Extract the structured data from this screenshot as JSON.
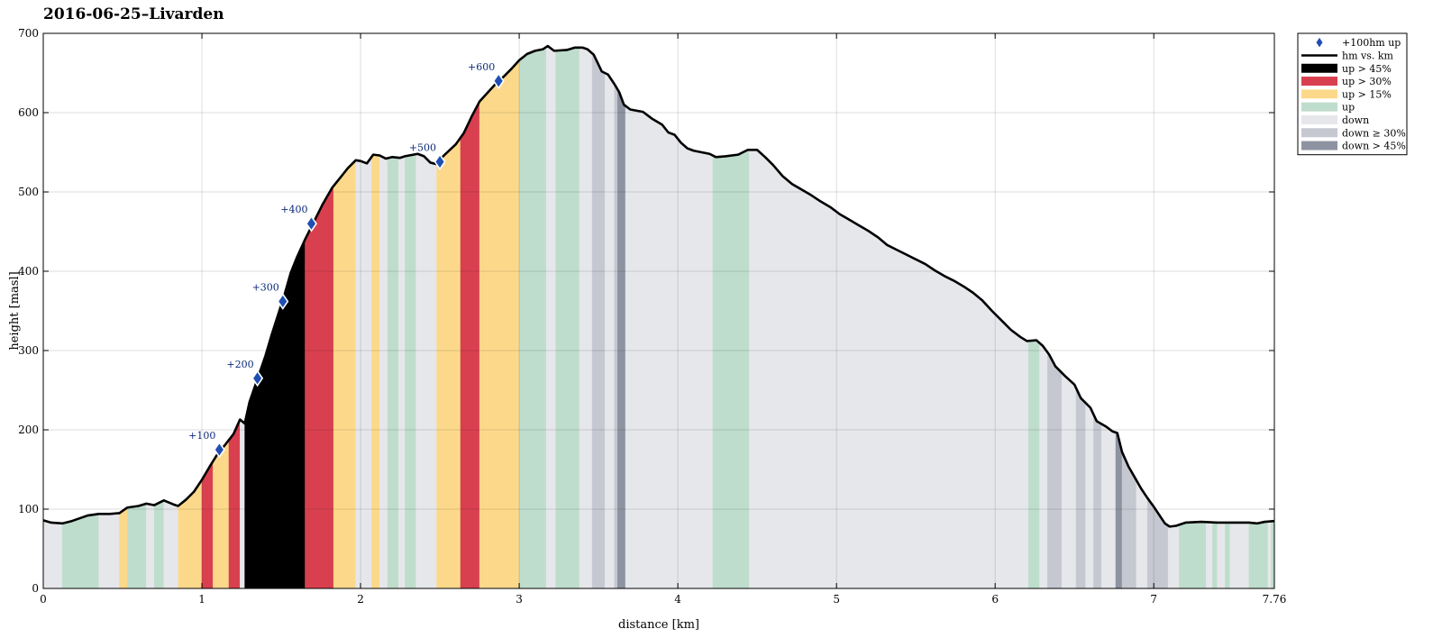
{
  "chart_data": {
    "type": "area",
    "title": "2016-06-25–Livarden",
    "xlabel": "distance [km]",
    "ylabel": "height [masl]",
    "xlim": [
      0,
      7.76
    ],
    "ylim": [
      0,
      700
    ],
    "xticks": [
      0,
      1,
      2,
      3,
      4,
      5,
      6,
      7,
      7.76
    ],
    "xtick_labels": [
      "0",
      "1",
      "2",
      "3",
      "4",
      "5",
      "6",
      "7",
      "7.76"
    ],
    "yticks": [
      0,
      100,
      200,
      300,
      400,
      500,
      600,
      700
    ],
    "grid": true,
    "legend_position": "outside-top-right",
    "legend": [
      {
        "key": "marker",
        "label": "+100hm up",
        "color": "#1f4fb4"
      },
      {
        "key": "line",
        "label": "hm vs. km",
        "color": "#000000"
      },
      {
        "key": "up45",
        "label": "up > 45%",
        "color": "#000000"
      },
      {
        "key": "up30",
        "label": "up > 30%",
        "color": "#d9404f"
      },
      {
        "key": "up15",
        "label": "up > 15%",
        "color": "#fcd98a"
      },
      {
        "key": "up",
        "label": "up",
        "color": "#bfddcc"
      },
      {
        "key": "down",
        "label": "down",
        "color": "#e6e7eb"
      },
      {
        "key": "down30",
        "label": "down ≥ 30%",
        "color": "#c6c8d1"
      },
      {
        "key": "down45",
        "label": "down > 45%",
        "color": "#8d93a1"
      }
    ],
    "profile": [
      [
        0,
        86
      ],
      [
        0.05,
        83
      ],
      [
        0.12,
        82
      ],
      [
        0.18,
        85
      ],
      [
        0.28,
        92
      ],
      [
        0.35,
        94
      ],
      [
        0.42,
        94
      ],
      [
        0.48,
        95
      ],
      [
        0.53,
        102
      ],
      [
        0.6,
        104
      ],
      [
        0.65,
        107
      ],
      [
        0.7,
        105
      ],
      [
        0.76,
        111
      ],
      [
        0.82,
        106
      ],
      [
        0.85,
        104
      ],
      [
        0.9,
        112
      ],
      [
        0.95,
        122
      ],
      [
        1.0,
        137
      ],
      [
        1.05,
        154
      ],
      [
        1.1,
        170
      ],
      [
        1.15,
        182
      ],
      [
        1.2,
        195
      ],
      [
        1.24,
        213
      ],
      [
        1.27,
        208
      ],
      [
        1.3,
        235
      ],
      [
        1.35,
        264
      ],
      [
        1.4,
        293
      ],
      [
        1.44,
        320
      ],
      [
        1.48,
        345
      ],
      [
        1.52,
        370
      ],
      [
        1.56,
        398
      ],
      [
        1.6,
        418
      ],
      [
        1.65,
        440
      ],
      [
        1.7,
        460
      ],
      [
        1.76,
        484
      ],
      [
        1.82,
        505
      ],
      [
        1.88,
        520
      ],
      [
        1.92,
        530
      ],
      [
        1.97,
        540
      ],
      [
        2.0,
        539
      ],
      [
        2.04,
        536
      ],
      [
        2.08,
        547
      ],
      [
        2.12,
        546
      ],
      [
        2.16,
        542
      ],
      [
        2.2,
        544
      ],
      [
        2.25,
        543
      ],
      [
        2.28,
        545
      ],
      [
        2.36,
        548
      ],
      [
        2.4,
        545
      ],
      [
        2.44,
        537
      ],
      [
        2.48,
        535
      ],
      [
        2.52,
        545
      ],
      [
        2.6,
        560
      ],
      [
        2.65,
        574
      ],
      [
        2.7,
        595
      ],
      [
        2.75,
        614
      ],
      [
        2.8,
        625
      ],
      [
        2.85,
        636
      ],
      [
        2.9,
        645
      ],
      [
        2.95,
        655
      ],
      [
        3.0,
        666
      ],
      [
        3.05,
        674
      ],
      [
        3.1,
        678
      ],
      [
        3.15,
        680
      ],
      [
        3.18,
        684
      ],
      [
        3.22,
        678
      ],
      [
        3.3,
        679
      ],
      [
        3.35,
        682
      ],
      [
        3.4,
        682
      ],
      [
        3.43,
        680
      ],
      [
        3.47,
        673
      ],
      [
        3.52,
        652
      ],
      [
        3.56,
        648
      ],
      [
        3.6,
        636
      ],
      [
        3.63,
        626
      ],
      [
        3.66,
        610
      ],
      [
        3.7,
        604
      ],
      [
        3.78,
        601
      ],
      [
        3.84,
        592
      ],
      [
        3.9,
        585
      ],
      [
        3.94,
        575
      ],
      [
        3.98,
        572
      ],
      [
        4.02,
        562
      ],
      [
        4.06,
        555
      ],
      [
        4.1,
        552
      ],
      [
        4.15,
        550
      ],
      [
        4.2,
        548
      ],
      [
        4.24,
        544
      ],
      [
        4.3,
        545
      ],
      [
        4.38,
        547
      ],
      [
        4.44,
        553
      ],
      [
        4.5,
        553
      ],
      [
        4.55,
        544
      ],
      [
        4.6,
        534
      ],
      [
        4.66,
        520
      ],
      [
        4.72,
        510
      ],
      [
        4.78,
        503
      ],
      [
        4.84,
        496
      ],
      [
        4.9,
        488
      ],
      [
        4.96,
        481
      ],
      [
        5.02,
        472
      ],
      [
        5.08,
        465
      ],
      [
        5.14,
        458
      ],
      [
        5.2,
        451
      ],
      [
        5.26,
        443
      ],
      [
        5.32,
        433
      ],
      [
        5.38,
        427
      ],
      [
        5.44,
        421
      ],
      [
        5.5,
        415
      ],
      [
        5.56,
        409
      ],
      [
        5.62,
        401
      ],
      [
        5.68,
        394
      ],
      [
        5.74,
        388
      ],
      [
        5.8,
        381
      ],
      [
        5.86,
        373
      ],
      [
        5.92,
        363
      ],
      [
        5.98,
        350
      ],
      [
        6.04,
        338
      ],
      [
        6.1,
        326
      ],
      [
        6.16,
        317
      ],
      [
        6.2,
        312
      ],
      [
        6.26,
        313
      ],
      [
        6.3,
        306
      ],
      [
        6.34,
        295
      ],
      [
        6.38,
        280
      ],
      [
        6.44,
        268
      ],
      [
        6.5,
        257
      ],
      [
        6.54,
        240
      ],
      [
        6.6,
        228
      ],
      [
        6.64,
        211
      ],
      [
        6.7,
        204
      ],
      [
        6.74,
        198
      ],
      [
        6.77,
        196
      ],
      [
        6.8,
        172
      ],
      [
        6.84,
        154
      ],
      [
        6.88,
        140
      ],
      [
        6.92,
        126
      ],
      [
        6.96,
        114
      ],
      [
        7.0,
        103
      ],
      [
        7.04,
        91
      ],
      [
        7.07,
        82
      ],
      [
        7.1,
        78
      ],
      [
        7.14,
        79
      ],
      [
        7.2,
        83
      ],
      [
        7.3,
        84
      ],
      [
        7.4,
        83
      ],
      [
        7.5,
        83
      ],
      [
        7.6,
        83
      ],
      [
        7.65,
        82
      ],
      [
        7.7,
        84
      ],
      [
        7.76,
        85
      ]
    ],
    "segments": [
      [
        0,
        0.12,
        "down"
      ],
      [
        0.12,
        0.35,
        "up"
      ],
      [
        0.35,
        0.48,
        "down"
      ],
      [
        0.48,
        0.53,
        "up15"
      ],
      [
        0.53,
        0.65,
        "up"
      ],
      [
        0.65,
        0.7,
        "down"
      ],
      [
        0.7,
        0.76,
        "up"
      ],
      [
        0.76,
        0.85,
        "down"
      ],
      [
        0.85,
        1.0,
        "up15"
      ],
      [
        1.0,
        1.07,
        "up30"
      ],
      [
        1.07,
        1.17,
        "up15"
      ],
      [
        1.17,
        1.24,
        "up30"
      ],
      [
        1.24,
        1.27,
        "down"
      ],
      [
        1.27,
        1.65,
        "up45"
      ],
      [
        1.65,
        1.83,
        "up30"
      ],
      [
        1.83,
        1.97,
        "up15"
      ],
      [
        1.97,
        2.07,
        "down"
      ],
      [
        2.07,
        2.12,
        "up15"
      ],
      [
        2.12,
        2.17,
        "down"
      ],
      [
        2.17,
        2.24,
        "up"
      ],
      [
        2.24,
        2.28,
        "down"
      ],
      [
        2.28,
        2.35,
        "up"
      ],
      [
        2.35,
        2.48,
        "down"
      ],
      [
        2.48,
        2.63,
        "up15"
      ],
      [
        2.63,
        2.75,
        "up30"
      ],
      [
        2.75,
        3.0,
        "up15"
      ],
      [
        3.0,
        3.17,
        "up"
      ],
      [
        3.17,
        3.23,
        "down"
      ],
      [
        3.23,
        3.38,
        "up"
      ],
      [
        3.38,
        3.46,
        "down"
      ],
      [
        3.46,
        3.54,
        "down30"
      ],
      [
        3.54,
        3.6,
        "down"
      ],
      [
        3.6,
        3.62,
        "down30"
      ],
      [
        3.62,
        3.67,
        "down45"
      ],
      [
        3.67,
        4.22,
        "down"
      ],
      [
        4.22,
        4.45,
        "up"
      ],
      [
        4.45,
        6.21,
        "down"
      ],
      [
        6.21,
        6.28,
        "up"
      ],
      [
        6.28,
        6.33,
        "down"
      ],
      [
        6.33,
        6.42,
        "down30"
      ],
      [
        6.42,
        6.51,
        "down"
      ],
      [
        6.51,
        6.57,
        "down30"
      ],
      [
        6.57,
        6.62,
        "down"
      ],
      [
        6.62,
        6.67,
        "down30"
      ],
      [
        6.67,
        6.76,
        "down"
      ],
      [
        6.76,
        6.8,
        "down45"
      ],
      [
        6.8,
        6.89,
        "down30"
      ],
      [
        6.89,
        6.96,
        "down"
      ],
      [
        6.96,
        7.09,
        "down30"
      ],
      [
        7.09,
        7.16,
        "down"
      ],
      [
        7.16,
        7.33,
        "up"
      ],
      [
        7.33,
        7.37,
        "down"
      ],
      [
        7.37,
        7.4,
        "up"
      ],
      [
        7.4,
        7.45,
        "down"
      ],
      [
        7.45,
        7.48,
        "up"
      ],
      [
        7.48,
        7.6,
        "down"
      ],
      [
        7.6,
        7.72,
        "up"
      ],
      [
        7.72,
        7.74,
        "down"
      ],
      [
        7.74,
        7.76,
        "up"
      ]
    ],
    "markers": [
      {
        "x": 1.11,
        "y": 175,
        "label": "+100"
      },
      {
        "x": 1.35,
        "y": 265,
        "label": "+200"
      },
      {
        "x": 1.51,
        "y": 362,
        "label": "+300"
      },
      {
        "x": 1.69,
        "y": 460,
        "label": "+400"
      },
      {
        "x": 2.5,
        "y": 538,
        "label": "+500"
      },
      {
        "x": 2.87,
        "y": 640,
        "label": "+600"
      }
    ]
  }
}
